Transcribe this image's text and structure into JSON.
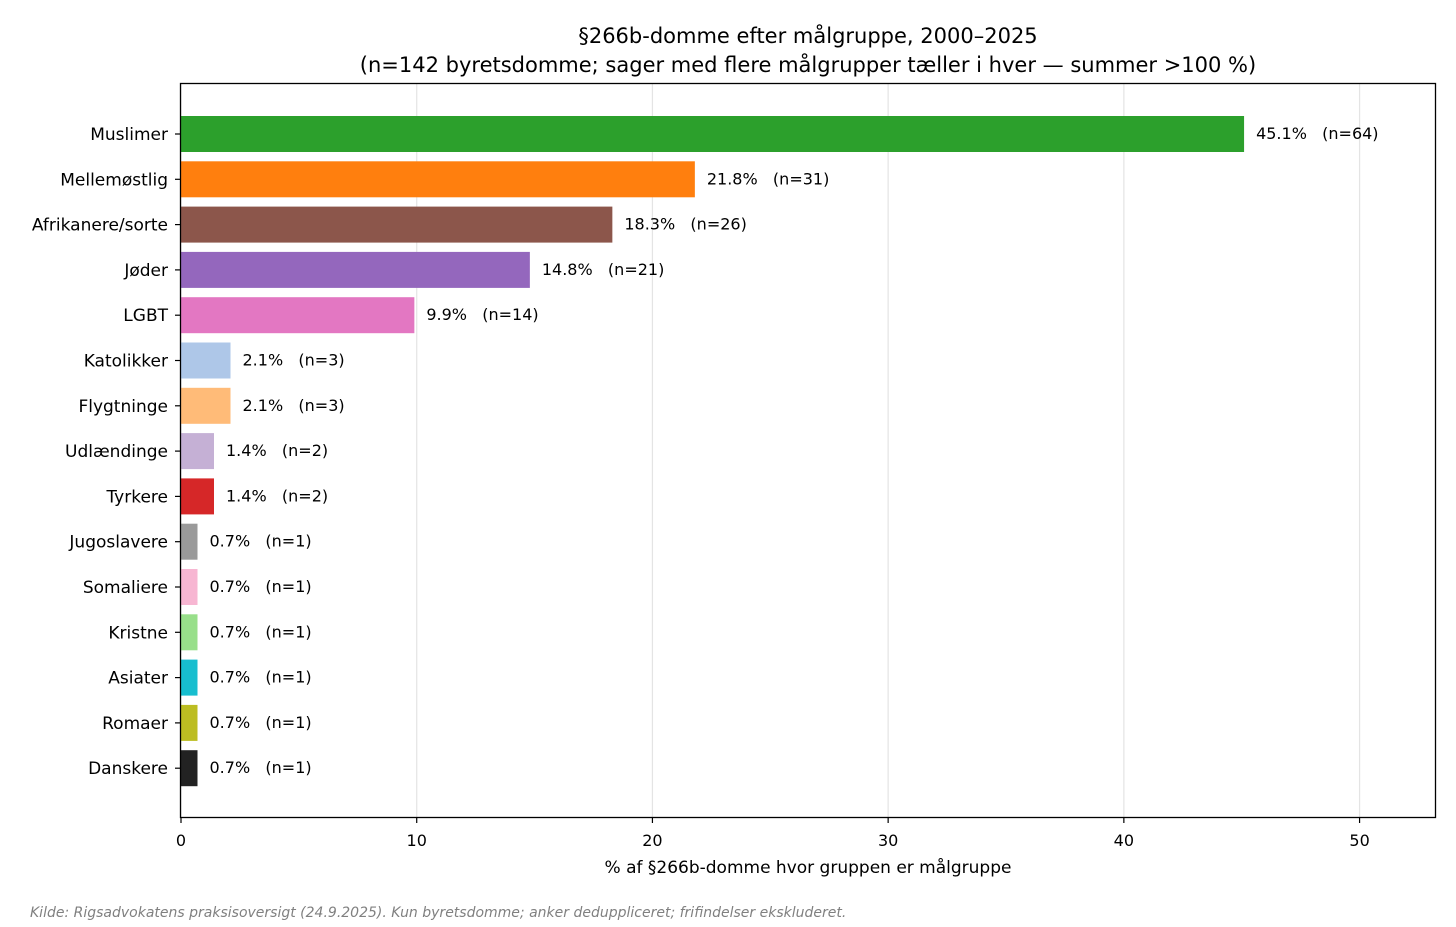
{
  "chart_data": {
    "type": "bar",
    "orientation": "horizontal",
    "title": "§266b-domme efter målgruppe, 2000–2025",
    "subtitle": "(n=142 byretsdomme; sager med flere målgrupper tæller i hver — summer >100 %)",
    "xlabel": "% af §266b-domme hvor gruppen er målgruppe",
    "ylabel": "",
    "xlim": [
      0,
      53.2
    ],
    "xticks": [
      0,
      10,
      20,
      30,
      40,
      50
    ],
    "grid": "vertical",
    "categories": [
      "Muslimer",
      "Mellemøstlig",
      "Afrikanere/sorte",
      "Jøder",
      "LGBT",
      "Katolikker",
      "Flygtninge",
      "Udlændinge",
      "Tyrkere",
      "Jugoslavere",
      "Somaliere",
      "Kristne",
      "Asiater",
      "Romaer",
      "Danskere"
    ],
    "values": [
      45.1,
      21.8,
      18.3,
      14.8,
      9.9,
      2.1,
      2.1,
      1.4,
      1.4,
      0.7,
      0.7,
      0.7,
      0.7,
      0.7,
      0.7
    ],
    "labels": [
      "45.1%   (n=64)",
      "21.8%   (n=31)",
      "18.3%   (n=26)",
      "14.8%   (n=21)",
      "9.9%   (n=14)",
      "2.1%   (n=3)",
      "2.1%   (n=3)",
      "1.4%   (n=2)",
      "1.4%   (n=2)",
      "0.7%   (n=1)",
      "0.7%   (n=1)",
      "0.7%   (n=1)",
      "0.7%   (n=1)",
      "0.7%   (n=1)",
      "0.7%   (n=1)"
    ],
    "colors": [
      "#2ca02c",
      "#ff7f0e",
      "#8c564b",
      "#9467bd",
      "#e377c2",
      "#aec7e8",
      "#ffbb78",
      "#c5b0d5",
      "#d62728",
      "#9a9a9a",
      "#f7b6d2",
      "#98df8a",
      "#17becf",
      "#bcbd22",
      "#222222"
    ],
    "source": "Kilde: Rigsadvokatens praksisoversigt (24.9.2025). Kun byretsdomme; anker deduppliceret; frifindelser ekskluderet."
  }
}
